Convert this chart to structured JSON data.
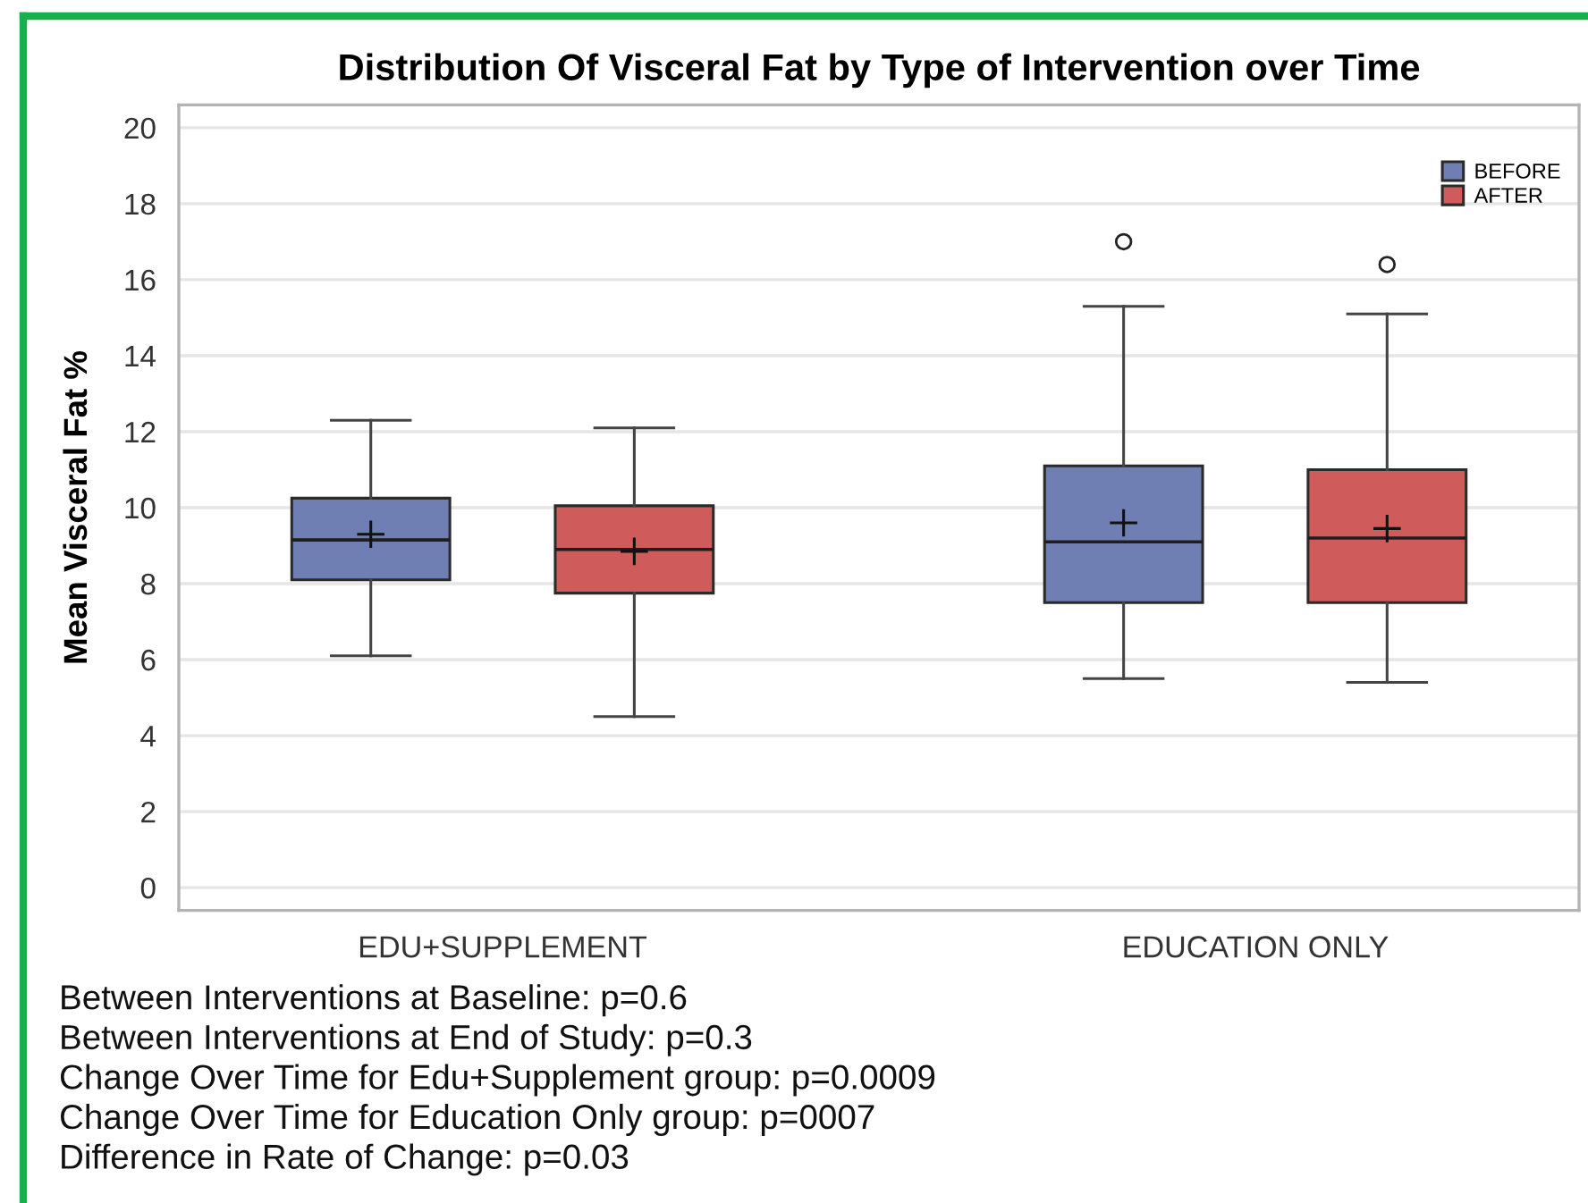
{
  "chart_data": {
    "type": "box",
    "title": "Distribution Of Visceral Fat by Type of Intervention over Time",
    "ylabel": "Mean Visceral Fat %",
    "categories": [
      "EDU+SUPPLEMENT",
      "EDUCATION ONLY"
    ],
    "series": [
      {
        "name": "BEFORE",
        "color": "#6f7eb3",
        "boxes": [
          {
            "low": 6.1,
            "q1": 8.1,
            "median": 9.15,
            "q3": 10.25,
            "high": 12.3,
            "mean": 9.3
          },
          {
            "low": 5.5,
            "q1": 7.5,
            "median": 9.1,
            "q3": 11.1,
            "high": 15.3,
            "mean": 9.6,
            "outliers": [
              17.0
            ]
          }
        ]
      },
      {
        "name": "AFTER",
        "color": "#d05b5b",
        "boxes": [
          {
            "low": 4.5,
            "q1": 7.75,
            "median": 8.9,
            "q3": 10.05,
            "high": 12.1,
            "mean": 8.85
          },
          {
            "low": 5.4,
            "q1": 7.5,
            "median": 9.2,
            "q3": 11.0,
            "high": 15.1,
            "mean": 9.45,
            "outliers": [
              16.4
            ]
          }
        ]
      }
    ],
    "ylim": [
      -0.6,
      20.6
    ],
    "yticks": [
      0,
      2,
      4,
      6,
      8,
      10,
      12,
      14,
      16,
      18,
      20
    ],
    "grid": "y",
    "legend": "top right",
    "annotations": [
      "Between Interventions at Baseline: p=0.6",
      "Between Interventions at End of Study: p=0.3",
      "Change Over Time for Edu+Supplement group: p=0.0009",
      "Change Over Time for Education Only group: p=0007",
      "Difference in Rate of Change: p=0.03"
    ]
  }
}
